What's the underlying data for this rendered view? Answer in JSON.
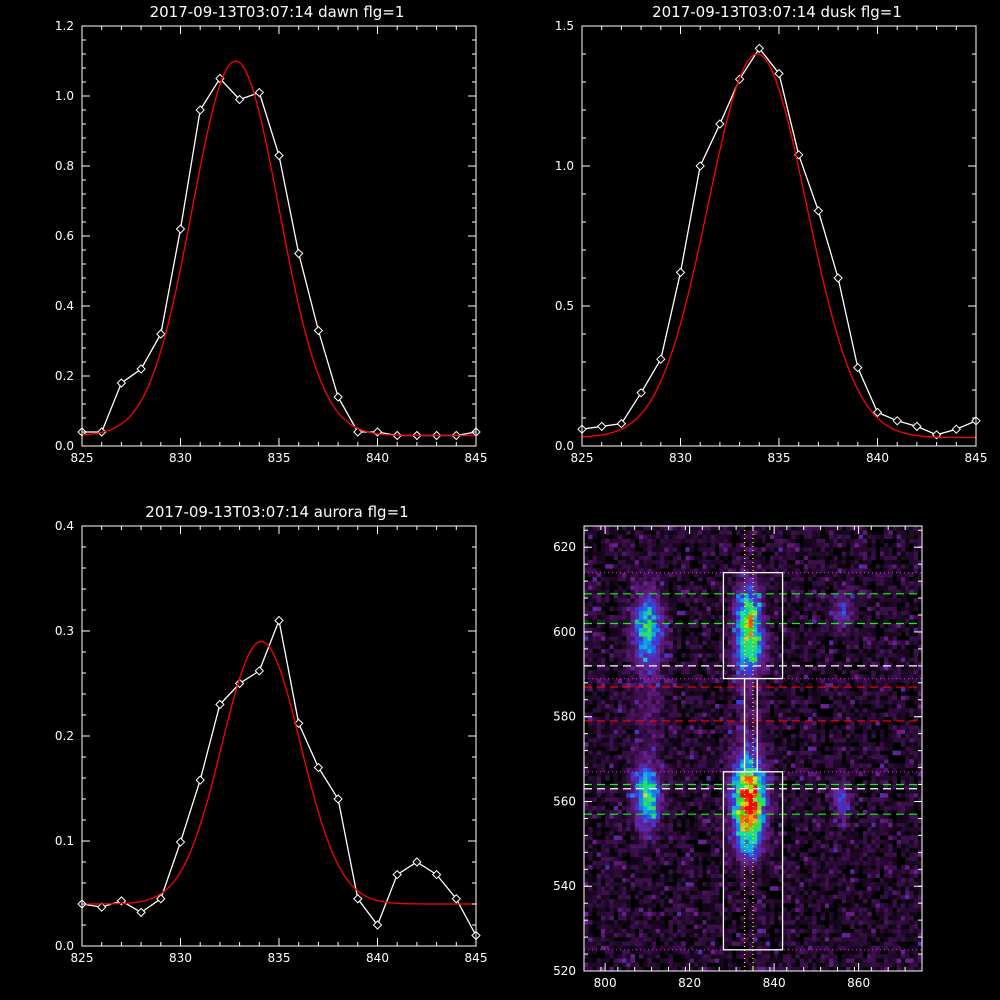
{
  "chart_data": [
    {
      "type": "line",
      "title": "2017-09-13T03:07:14 dawn flg=1",
      "xlim": [
        825,
        845
      ],
      "ylim": [
        0.0,
        1.2
      ],
      "xticks": [
        825,
        830,
        835,
        840,
        845
      ],
      "yticks": [
        0.0,
        0.2,
        0.4,
        0.6,
        0.8,
        1.0,
        1.2
      ],
      "xtick_labels": [
        "825",
        "830",
        "835",
        "840",
        "845"
      ],
      "ytick_labels": [
        "0.0",
        "0.2",
        "0.4",
        "0.6",
        "0.8",
        "1.0",
        "1.2"
      ],
      "series": [
        {
          "kind": "data",
          "color": "#ffffff",
          "marker": "diamond",
          "x": [
            825,
            826,
            827,
            828,
            829,
            830,
            831,
            832,
            833,
            834,
            835,
            836,
            837,
            838,
            839,
            840,
            841,
            842,
            843,
            844,
            845
          ],
          "y": [
            0.04,
            0.04,
            0.18,
            0.22,
            0.32,
            0.62,
            0.96,
            1.05,
            0.99,
            1.01,
            0.83,
            0.55,
            0.33,
            0.14,
            0.04,
            0.04,
            0.03,
            0.03,
            0.03,
            0.03,
            0.04
          ]
        },
        {
          "kind": "fit",
          "color": "#ff0000",
          "model": "gaussian",
          "center": 832.8,
          "sigma": 2.2,
          "amplitude": 1.07,
          "baseline": 0.03
        }
      ]
    },
    {
      "type": "line",
      "title": "2017-09-13T03:07:14 dusk flg=1",
      "xlim": [
        825,
        845
      ],
      "ylim": [
        0.0,
        1.5
      ],
      "xticks": [
        825,
        830,
        835,
        840,
        845
      ],
      "yticks": [
        0.0,
        0.5,
        1.0,
        1.5
      ],
      "xtick_labels": [
        "825",
        "830",
        "835",
        "840",
        "845"
      ],
      "ytick_labels": [
        "0.0",
        "0.5",
        "1.0",
        "1.5"
      ],
      "series": [
        {
          "kind": "data",
          "color": "#ffffff",
          "marker": "diamond",
          "x": [
            825,
            826,
            827,
            828,
            829,
            830,
            831,
            832,
            833,
            834,
            835,
            836,
            837,
            838,
            839,
            840,
            841,
            842,
            843,
            844,
            845
          ],
          "y": [
            0.06,
            0.07,
            0.08,
            0.19,
            0.31,
            0.62,
            1.0,
            1.15,
            1.31,
            1.42,
            1.33,
            1.04,
            0.84,
            0.6,
            0.28,
            0.12,
            0.09,
            0.07,
            0.04,
            0.06,
            0.09
          ]
        },
        {
          "kind": "fit",
          "color": "#ff0000",
          "model": "gaussian",
          "center": 833.9,
          "sigma": 2.5,
          "amplitude": 1.37,
          "baseline": 0.03
        }
      ]
    },
    {
      "type": "line",
      "title": "2017-09-13T03:07:14 aurora flg=1",
      "xlim": [
        825,
        845
      ],
      "ylim": [
        0.0,
        0.4
      ],
      "xticks": [
        825,
        830,
        835,
        840,
        845
      ],
      "yticks": [
        0.0,
        0.1,
        0.2,
        0.3,
        0.4
      ],
      "xtick_labels": [
        "825",
        "830",
        "835",
        "840",
        "845"
      ],
      "ytick_labels": [
        "0.0",
        "0.1",
        "0.2",
        "0.3",
        "0.4"
      ],
      "series": [
        {
          "kind": "data",
          "color": "#ffffff",
          "marker": "diamond",
          "x": [
            825,
            826,
            827,
            828,
            829,
            830,
            831,
            832,
            833,
            834,
            835,
            836,
            837,
            838,
            839,
            840,
            841,
            842,
            843,
            844,
            845
          ],
          "y": [
            0.04,
            0.037,
            0.043,
            0.032,
            0.045,
            0.099,
            0.158,
            0.23,
            0.25,
            0.262,
            0.31,
            0.212,
            0.17,
            0.14,
            0.045,
            0.02,
            0.068,
            0.08,
            0.068,
            0.045,
            0.01
          ]
        },
        {
          "kind": "fit",
          "color": "#ff0000",
          "model": "gaussian",
          "center": 834.1,
          "sigma": 2.0,
          "amplitude": 0.25,
          "baseline": 0.04
        }
      ]
    },
    {
      "type": "heatmap",
      "title": "",
      "xlim": [
        795,
        875
      ],
      "ylim": [
        520,
        625
      ],
      "xticks": [
        800,
        820,
        840,
        860
      ],
      "yticks": [
        520,
        540,
        560,
        580,
        600,
        620
      ],
      "xtick_labels": [
        "800",
        "820",
        "840",
        "860"
      ],
      "ytick_labels": [
        "520",
        "540",
        "560",
        "580",
        "600",
        "620"
      ],
      "colormap": [
        "#000000",
        "#3a0f4a",
        "#6a1f8a",
        "#3a3ae0",
        "#0aa0f0",
        "#20e0a0",
        "#30e030",
        "#f0e020",
        "#ff4a00",
        "#ff0000"
      ],
      "blobs": [
        {
          "x": 810,
          "y": 601,
          "sx": 2.2,
          "sy": 6,
          "amp": 0.48
        },
        {
          "x": 834,
          "y": 603,
          "sx": 2.0,
          "sy": 5.5,
          "amp": 0.62
        },
        {
          "x": 834,
          "y": 595,
          "sx": 2.5,
          "sy": 4,
          "amp": 0.28
        },
        {
          "x": 856,
          "y": 605,
          "sx": 1.5,
          "sy": 3,
          "amp": 0.22
        },
        {
          "x": 810,
          "y": 561,
          "sx": 2.2,
          "sy": 5,
          "amp": 0.52
        },
        {
          "x": 834,
          "y": 561,
          "sx": 2.5,
          "sy": 6,
          "amp": 0.92
        },
        {
          "x": 834,
          "y": 551,
          "sx": 2.2,
          "sy": 4,
          "amp": 0.3
        },
        {
          "x": 856,
          "y": 560,
          "sx": 1.5,
          "sy": 3,
          "amp": 0.25
        },
        {
          "x": 834,
          "y": 582,
          "sx": 2.0,
          "sy": 10,
          "amp": 0.1
        },
        {
          "x": 810,
          "y": 582,
          "sx": 2.5,
          "sy": 10,
          "amp": 0.08
        }
      ],
      "boxes": [
        {
          "x0": 828,
          "x1": 842,
          "y0": 589,
          "y1": 614,
          "color": "#ffffff"
        },
        {
          "x0": 828,
          "x1": 842,
          "y0": 525,
          "y1": 567,
          "color": "#ffffff"
        },
        {
          "x0": 833,
          "x1": 836,
          "y0": 567,
          "y1": 589,
          "color": "#ffffff"
        }
      ],
      "hlines": [
        {
          "y": 614,
          "color": "#ff00ff",
          "style": "dotted"
        },
        {
          "y": 609,
          "color": "#00ff00",
          "style": "dashed"
        },
        {
          "y": 602,
          "color": "#00ff00",
          "style": "dashed"
        },
        {
          "y": 592,
          "color": "#ffffff",
          "style": "dashed"
        },
        {
          "y": 589,
          "color": "#ff00ff",
          "style": "dotted"
        },
        {
          "y": 587,
          "color": "#ff0000",
          "style": "dashed"
        },
        {
          "y": 579,
          "color": "#ff0000",
          "style": "dashed"
        },
        {
          "y": 567,
          "color": "#ff00ff",
          "style": "dotted"
        },
        {
          "y": 564,
          "color": "#00ff00",
          "style": "dashed"
        },
        {
          "y": 563,
          "color": "#ffffff",
          "style": "dashed"
        },
        {
          "y": 557,
          "color": "#00ff00",
          "style": "dashed"
        },
        {
          "y": 525,
          "color": "#ff00ff",
          "style": "dotted"
        }
      ],
      "vlines": [
        {
          "x": 833,
          "color": "#ffff00",
          "style": "dotted"
        },
        {
          "x": 835,
          "color": "#ffff00",
          "style": "dotted"
        }
      ]
    }
  ]
}
